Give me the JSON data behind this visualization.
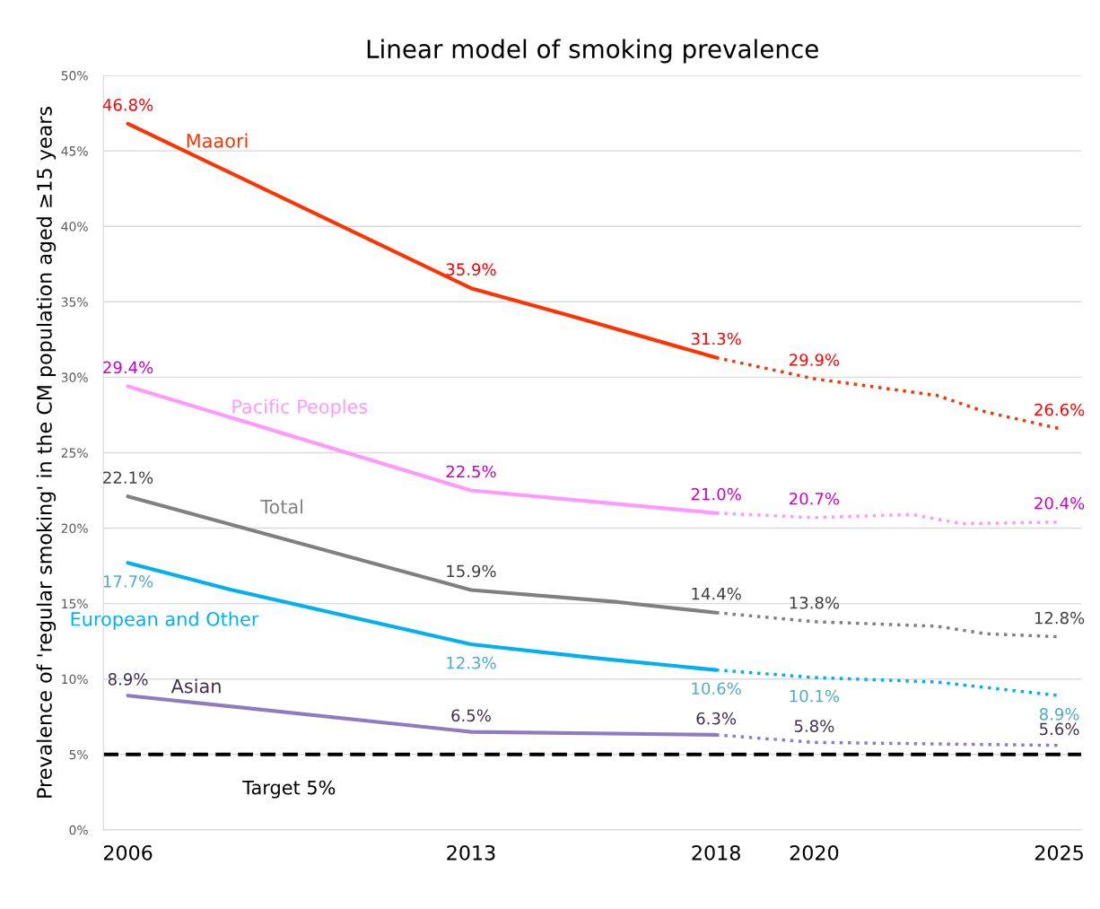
{
  "chart_data": {
    "type": "line",
    "title": "Linear model of smoking prevalence",
    "ylabel": "Prevalence of 'regular smoking' in the CM population aged ≥15 years",
    "xlim": [
      2005.5,
      2025.45
    ],
    "xticks": [
      2006,
      2013,
      2018,
      2020,
      2025
    ],
    "ylim": [
      0,
      50
    ],
    "yticks": [
      {
        "value": 0,
        "label": "0%"
      },
      {
        "value": 5,
        "label": "5%"
      },
      {
        "value": 10,
        "label": "10%"
      },
      {
        "value": 15,
        "label": "15%"
      },
      {
        "value": 20,
        "label": "20%"
      },
      {
        "value": 25,
        "label": "25%"
      },
      {
        "value": 30,
        "label": "30%"
      },
      {
        "value": 35,
        "label": "35%"
      },
      {
        "value": 40,
        "label": "40%"
      },
      {
        "value": 45,
        "label": "45%"
      },
      {
        "value": 50,
        "label": "50%"
      }
    ],
    "grid": "y",
    "legend": false,
    "marker": "none",
    "series": [
      {
        "name": "Maaori",
        "color": "#ff3300",
        "line_style": "solid",
        "x": [
          2006,
          2013,
          2015,
          2018
        ],
        "values": [
          46.8,
          35.9,
          34.1,
          31.3
        ],
        "value_labels": [
          "46.8%",
          "35.9%",
          null,
          "31.3%"
        ]
      },
      {
        "color": "#ff3300",
        "line_style": "dotted",
        "x": [
          2018,
          2020,
          2022.5,
          2023.5,
          2025
        ],
        "values": [
          31.3,
          29.9,
          28.8,
          27.7,
          26.6
        ],
        "value_labels": [
          null,
          "29.9%",
          null,
          null,
          "26.6%"
        ]
      },
      {
        "name": "Pacific Peoples",
        "color": "#ff99ff",
        "line_style": "solid",
        "x": [
          2006,
          2013,
          2016,
          2018
        ],
        "values": [
          29.4,
          22.5,
          21.6,
          21.0
        ],
        "value_labels": [
          "29.4%",
          "22.5%",
          null,
          "21.0%"
        ]
      },
      {
        "color": "#ff99ff",
        "line_style": "dotted",
        "x": [
          2018,
          2020,
          2022,
          2023,
          2025
        ],
        "values": [
          21.0,
          20.7,
          20.9,
          20.3,
          20.4
        ],
        "value_labels": [
          null,
          "20.7%",
          null,
          null,
          "20.4%"
        ]
      },
      {
        "name": "Total",
        "color": "#808080",
        "line_style": "solid",
        "x": [
          2006,
          2013,
          2016,
          2018
        ],
        "values": [
          22.1,
          15.9,
          15.1,
          14.4
        ],
        "value_labels": [
          "22.1%",
          "15.9%",
          null,
          "14.4%"
        ]
      },
      {
        "color": "#808080",
        "line_style": "dotted",
        "x": [
          2018,
          2020,
          2022.5,
          2023.5,
          2025
        ],
        "values": [
          14.4,
          13.8,
          13.5,
          13.0,
          12.8
        ],
        "value_labels": [
          null,
          "13.8%",
          null,
          null,
          "12.8%"
        ]
      },
      {
        "name": "European and Other",
        "color": "#00b0f0",
        "line_style": "solid",
        "x": [
          2006,
          2008,
          2013,
          2015.5,
          2018
        ],
        "values": [
          17.7,
          16.0,
          12.3,
          11.4,
          10.6
        ],
        "value_labels": [
          "17.7%",
          null,
          "12.3%",
          null,
          "10.6%"
        ]
      },
      {
        "color": "#00b0f0",
        "line_style": "dotted",
        "x": [
          2018,
          2020,
          2022.5,
          2025
        ],
        "values": [
          10.6,
          10.1,
          9.8,
          8.9
        ],
        "value_labels": [
          null,
          "10.1%",
          null,
          "8.9%"
        ]
      },
      {
        "name": "Asian",
        "color": "#8e7cc3",
        "line_style": "solid",
        "x": [
          2006,
          2013,
          2018
        ],
        "values": [
          8.9,
          6.5,
          6.3
        ],
        "value_labels": [
          "8.9%",
          "6.5%",
          "6.3%"
        ]
      },
      {
        "color": "#8e7cc3",
        "line_style": "dotted",
        "x": [
          2018,
          2020,
          2025
        ],
        "values": [
          6.3,
          5.8,
          5.6
        ],
        "value_labels": [
          null,
          "5.8%",
          "5.6%"
        ]
      }
    ],
    "ref_lines": [
      {
        "axis": "y",
        "value": 5,
        "label": "Target 5%",
        "color": "#000000",
        "line_style": "dashed"
      }
    ]
  }
}
